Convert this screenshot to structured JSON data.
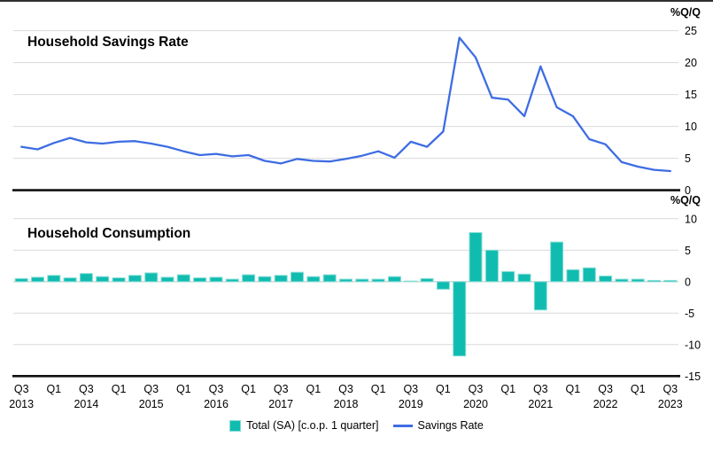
{
  "panels": {
    "savings": {
      "title": "Household Savings Rate",
      "unit": "%Q/Q"
    },
    "consumption": {
      "title": "Household Consumption",
      "unit": "%Q/Q"
    }
  },
  "legend": {
    "bar": "Total (SA) [c.o.p. 1 quarter]",
    "line": "Savings Rate"
  },
  "colors": {
    "line": "#3e6de3",
    "bar": "#10bcb0",
    "bar_border": "#86ddd6",
    "grid": "#d9d9d9",
    "zero_line": "#c6c6c6",
    "axis": "#111111",
    "text": "#000000"
  },
  "x_axis": {
    "ticks": [
      {
        "quarter": "Q3",
        "year": "2013"
      },
      {
        "quarter": "Q1",
        "year": ""
      },
      {
        "quarter": "Q3",
        "year": "2014"
      },
      {
        "quarter": "Q1",
        "year": ""
      },
      {
        "quarter": "Q3",
        "year": "2015"
      },
      {
        "quarter": "Q1",
        "year": ""
      },
      {
        "quarter": "Q3",
        "year": "2016"
      },
      {
        "quarter": "Q1",
        "year": ""
      },
      {
        "quarter": "Q3",
        "year": "2017"
      },
      {
        "quarter": "Q1",
        "year": ""
      },
      {
        "quarter": "Q3",
        "year": "2018"
      },
      {
        "quarter": "Q1",
        "year": ""
      },
      {
        "quarter": "Q3",
        "year": "2019"
      },
      {
        "quarter": "Q1",
        "year": ""
      },
      {
        "quarter": "Q3",
        "year": "2020"
      },
      {
        "quarter": "Q1",
        "year": ""
      },
      {
        "quarter": "Q3",
        "year": "2021"
      },
      {
        "quarter": "Q1",
        "year": ""
      },
      {
        "quarter": "Q3",
        "year": "2022"
      },
      {
        "quarter": "Q1",
        "year": ""
      },
      {
        "quarter": "Q3",
        "year": "2023"
      }
    ]
  },
  "chart_data": [
    {
      "type": "line",
      "name": "Savings Rate",
      "title": "Household Savings Rate",
      "ylabel": "%Q/Q",
      "ylim": [
        0,
        25
      ],
      "y_ticks": [
        0,
        5,
        10,
        15,
        20,
        25
      ],
      "grid": true,
      "legend_position": "bottom",
      "x": [
        "Q3 2013",
        "Q4 2013",
        "Q1 2014",
        "Q2 2014",
        "Q3 2014",
        "Q4 2014",
        "Q1 2015",
        "Q2 2015",
        "Q3 2015",
        "Q4 2015",
        "Q1 2016",
        "Q2 2016",
        "Q3 2016",
        "Q4 2016",
        "Q1 2017",
        "Q2 2017",
        "Q3 2017",
        "Q4 2017",
        "Q1 2018",
        "Q2 2018",
        "Q3 2018",
        "Q4 2018",
        "Q1 2019",
        "Q2 2019",
        "Q3 2019",
        "Q4 2019",
        "Q1 2020",
        "Q2 2020",
        "Q3 2020",
        "Q4 2020",
        "Q1 2021",
        "Q2 2021",
        "Q3 2021",
        "Q4 2021",
        "Q1 2022",
        "Q2 2022",
        "Q3 2022",
        "Q4 2022",
        "Q1 2023",
        "Q2 2023",
        "Q3 2023"
      ],
      "values": [
        6.8,
        6.4,
        7.4,
        8.2,
        7.5,
        7.3,
        7.6,
        7.7,
        7.3,
        6.8,
        6.1,
        5.5,
        5.7,
        5.3,
        5.5,
        4.6,
        4.2,
        4.9,
        4.6,
        4.5,
        4.9,
        5.4,
        6.1,
        5.1,
        7.6,
        6.8,
        9.2,
        23.9,
        20.8,
        14.5,
        14.2,
        11.6,
        19.4,
        13.0,
        11.6,
        8.0,
        7.2,
        4.4,
        3.7,
        3.2,
        3.0
      ]
    },
    {
      "type": "bar",
      "name": "Total (SA) [c.o.p. 1 quarter]",
      "title": "Household Consumption",
      "ylabel": "%Q/Q",
      "ylim": [
        -15,
        10
      ],
      "y_ticks": [
        10,
        5,
        0,
        -5,
        -10,
        -15
      ],
      "grid": true,
      "legend_position": "bottom",
      "categories": [
        "Q3 2013",
        "Q4 2013",
        "Q1 2014",
        "Q2 2014",
        "Q3 2014",
        "Q4 2014",
        "Q1 2015",
        "Q2 2015",
        "Q3 2015",
        "Q4 2015",
        "Q1 2016",
        "Q2 2016",
        "Q3 2016",
        "Q4 2016",
        "Q1 2017",
        "Q2 2017",
        "Q3 2017",
        "Q4 2017",
        "Q1 2018",
        "Q2 2018",
        "Q3 2018",
        "Q4 2018",
        "Q1 2019",
        "Q2 2019",
        "Q3 2019",
        "Q4 2019",
        "Q1 2020",
        "Q2 2020",
        "Q3 2020",
        "Q4 2020",
        "Q1 2021",
        "Q2 2021",
        "Q3 2021",
        "Q4 2021",
        "Q1 2022",
        "Q2 2022",
        "Q3 2022",
        "Q4 2022",
        "Q1 2023",
        "Q2 2023",
        "Q3 2023"
      ],
      "values": [
        0.5,
        0.7,
        1.0,
        0.6,
        1.3,
        0.8,
        0.6,
        1.0,
        1.4,
        0.7,
        1.1,
        0.6,
        0.7,
        0.4,
        1.1,
        0.8,
        1.0,
        1.5,
        0.8,
        1.1,
        0.4,
        0.4,
        0.4,
        0.8,
        0.1,
        0.5,
        -1.2,
        -11.8,
        7.8,
        5.0,
        1.6,
        1.2,
        -4.5,
        6.3,
        1.9,
        2.2,
        0.9,
        0.4,
        0.4,
        0.2,
        0.2
      ]
    }
  ]
}
